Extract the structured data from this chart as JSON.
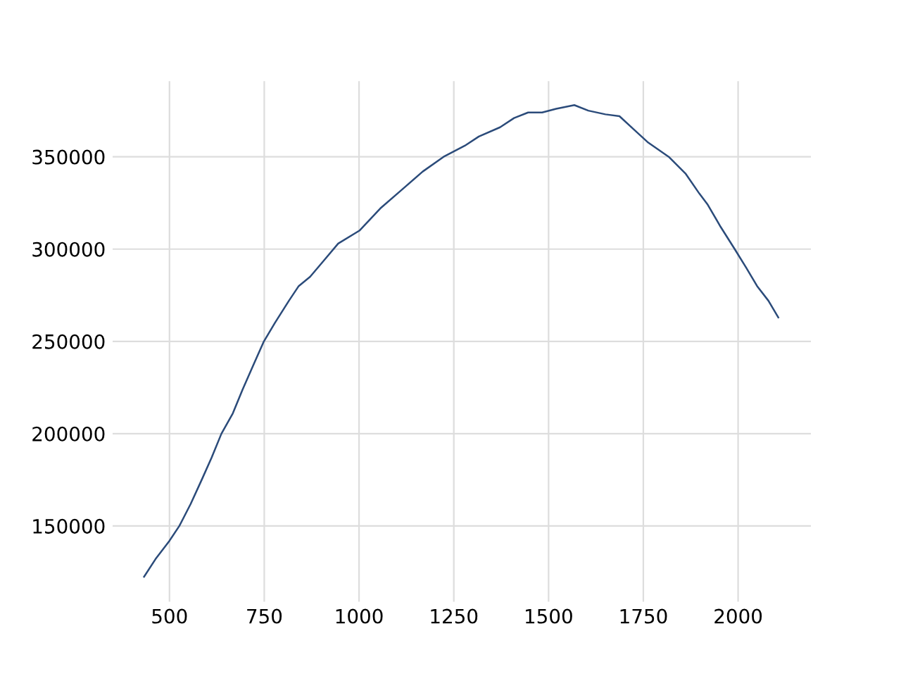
{
  "chart_data": {
    "type": "line",
    "x": [
      433,
      463,
      500,
      526,
      556,
      585,
      611,
      637,
      667,
      693,
      723,
      749,
      778,
      815,
      841,
      871,
      908,
      945,
      1001,
      1056,
      1112,
      1168,
      1223,
      1279,
      1316,
      1372,
      1409,
      1446,
      1483,
      1520,
      1568,
      1605,
      1650,
      1687,
      1724,
      1761,
      1817,
      1861,
      1898,
      1920,
      1954,
      1991,
      2021,
      2050,
      2080,
      2106
    ],
    "series": [
      {
        "color": "#2b4b7a",
        "values": [
          122500,
          132000,
          142000,
          150000,
          162000,
          175000,
          187000,
          200000,
          211000,
          224000,
          238000,
          250000,
          260000,
          272000,
          280000,
          285000,
          294000,
          303000,
          310000,
          322000,
          332000,
          342000,
          350000,
          356000,
          361000,
          366000,
          371000,
          374000,
          374000,
          376000,
          378000,
          375000,
          373000,
          372000,
          365000,
          358000,
          350000,
          341000,
          330000,
          324000,
          312000,
          300000,
          290000,
          280000,
          272000,
          263000
        ]
      }
    ],
    "xlim": [
      350,
      2192
    ],
    "ylim": [
      109000,
      391000
    ],
    "xticks": [
      500,
      750,
      1000,
      1250,
      1500,
      1750,
      2000
    ],
    "yticks": [
      150000,
      200000,
      250000,
      300000,
      350000
    ],
    "grid": true,
    "marker": "none",
    "line_style": "solid"
  }
}
